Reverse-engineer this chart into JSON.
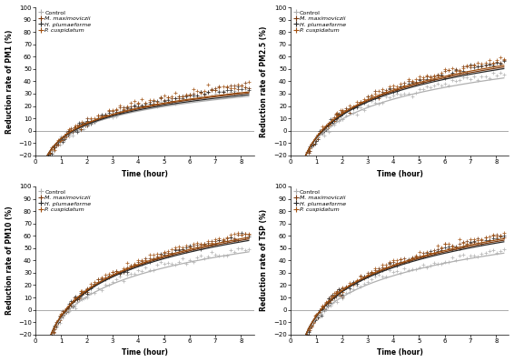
{
  "subplots": [
    {
      "ylabel": "Reduction rate of PM1 (%)",
      "xlabel": "Time (hour)",
      "ylim": [
        -20,
        100
      ],
      "xlim": [
        0,
        8.5
      ],
      "yticks": [
        -20,
        -10,
        0,
        10,
        20,
        30,
        40,
        50,
        60,
        70,
        80,
        90,
        100
      ],
      "xticks": [
        0,
        1,
        2,
        3,
        4,
        5,
        6,
        7,
        8
      ],
      "series": [
        {
          "a": 16.5,
          "b": -7.0,
          "dot_a": 19.0,
          "dot_b": -7.5,
          "line_color": "#b0b0b0",
          "dot_color": "#b0b0b0",
          "label": "Control"
        },
        {
          "a": 17.5,
          "b": -6.5,
          "dot_a": 20.5,
          "dot_b": -7.0,
          "line_color": "#7a3a10",
          "dot_color": "#7a3a10",
          "label": "M. maximoviczii"
        },
        {
          "a": 17.0,
          "b": -6.8,
          "dot_a": 19.8,
          "dot_b": -7.2,
          "line_color": "#2a2a2a",
          "dot_color": "#2a2a2a",
          "label": "H. plumaeforme"
        },
        {
          "a": 17.8,
          "b": -6.3,
          "dot_a": 21.0,
          "dot_b": -6.8,
          "line_color": "#a05010",
          "dot_color": "#a05010",
          "label": "P. cuspidatum"
        }
      ],
      "dot_noise": 1.5
    },
    {
      "ylabel": "Reduction rate of PM2.5 (%)",
      "xlabel": "Time (hour)",
      "ylim": [
        -20,
        100
      ],
      "xlim": [
        0,
        8.5
      ],
      "yticks": [
        -20,
        -10,
        0,
        10,
        20,
        30,
        40,
        50,
        60,
        70,
        80,
        90,
        100
      ],
      "xticks": [
        0,
        1,
        2,
        3,
        4,
        5,
        6,
        7,
        8
      ],
      "series": [
        {
          "a": 23.5,
          "b": -7.0,
          "dot_a": 25.5,
          "dot_b": -7.5,
          "line_color": "#b0b0b0",
          "dot_color": "#b0b0b0",
          "label": "Control"
        },
        {
          "a": 27.0,
          "b": -5.5,
          "dot_a": 29.5,
          "dot_b": -6.0,
          "line_color": "#7a3a10",
          "dot_color": "#7a3a10",
          "label": "M. maximoviczii"
        },
        {
          "a": 26.5,
          "b": -5.8,
          "dot_a": 28.8,
          "dot_b": -6.2,
          "line_color": "#2a2a2a",
          "dot_color": "#2a2a2a",
          "label": "H. plumaeforme"
        },
        {
          "a": 27.5,
          "b": -5.2,
          "dot_a": 30.0,
          "dot_b": -5.8,
          "line_color": "#a05010",
          "dot_color": "#a05010",
          "label": "P. cuspidatum"
        }
      ],
      "dot_noise": 1.5
    },
    {
      "ylabel": "Reduction rate of PM10 (%)",
      "xlabel": "Time (hour)",
      "ylim": [
        -20,
        100
      ],
      "xlim": [
        0,
        8.5
      ],
      "yticks": [
        -20,
        -10,
        0,
        10,
        20,
        30,
        40,
        50,
        60,
        70,
        80,
        90,
        100
      ],
      "xticks": [
        0,
        1,
        2,
        3,
        4,
        5,
        6,
        7,
        8
      ],
      "series": [
        {
          "a": 25.5,
          "b": -7.0,
          "dot_a": 26.5,
          "dot_b": -6.5,
          "line_color": "#b0b0b0",
          "dot_color": "#b0b0b0",
          "label": "Control"
        },
        {
          "a": 29.5,
          "b": -5.0,
          "dot_a": 31.5,
          "dot_b": -5.5,
          "line_color": "#7a3a10",
          "dot_color": "#7a3a10",
          "label": "M. maximoviczii"
        },
        {
          "a": 29.0,
          "b": -5.2,
          "dot_a": 31.0,
          "dot_b": -5.7,
          "line_color": "#2a2a2a",
          "dot_color": "#2a2a2a",
          "label": "H. plumaeforme"
        },
        {
          "a": 30.0,
          "b": -4.8,
          "dot_a": 32.0,
          "dot_b": -5.3,
          "line_color": "#a05010",
          "dot_color": "#a05010",
          "label": "P. cuspidatum"
        }
      ],
      "dot_noise": 1.5
    },
    {
      "ylabel": "Reduction rate of TSP (%)",
      "xlabel": "Time (hour)",
      "ylim": [
        -20,
        100
      ],
      "xlim": [
        0,
        8.5
      ],
      "yticks": [
        -20,
        -10,
        0,
        10,
        20,
        30,
        40,
        50,
        60,
        70,
        80,
        90,
        100
      ],
      "xticks": [
        0,
        1,
        2,
        3,
        4,
        5,
        6,
        7,
        8
      ],
      "series": [
        {
          "a": 25.0,
          "b": -7.0,
          "dot_a": 26.0,
          "dot_b": -6.5,
          "line_color": "#b0b0b0",
          "dot_color": "#b0b0b0",
          "label": "Control"
        },
        {
          "a": 29.0,
          "b": -5.0,
          "dot_a": 31.0,
          "dot_b": -5.5,
          "line_color": "#7a3a10",
          "dot_color": "#7a3a10",
          "label": "M. maximoviczii"
        },
        {
          "a": 28.5,
          "b": -5.2,
          "dot_a": 30.5,
          "dot_b": -5.7,
          "line_color": "#2a2a2a",
          "dot_color": "#2a2a2a",
          "label": "H. plumaeforme"
        },
        {
          "a": 29.5,
          "b": -4.8,
          "dot_a": 31.5,
          "dot_b": -5.3,
          "line_color": "#a05010",
          "dot_color": "#a05010",
          "label": "P. cuspidatum"
        }
      ],
      "dot_noise": 1.5
    }
  ]
}
